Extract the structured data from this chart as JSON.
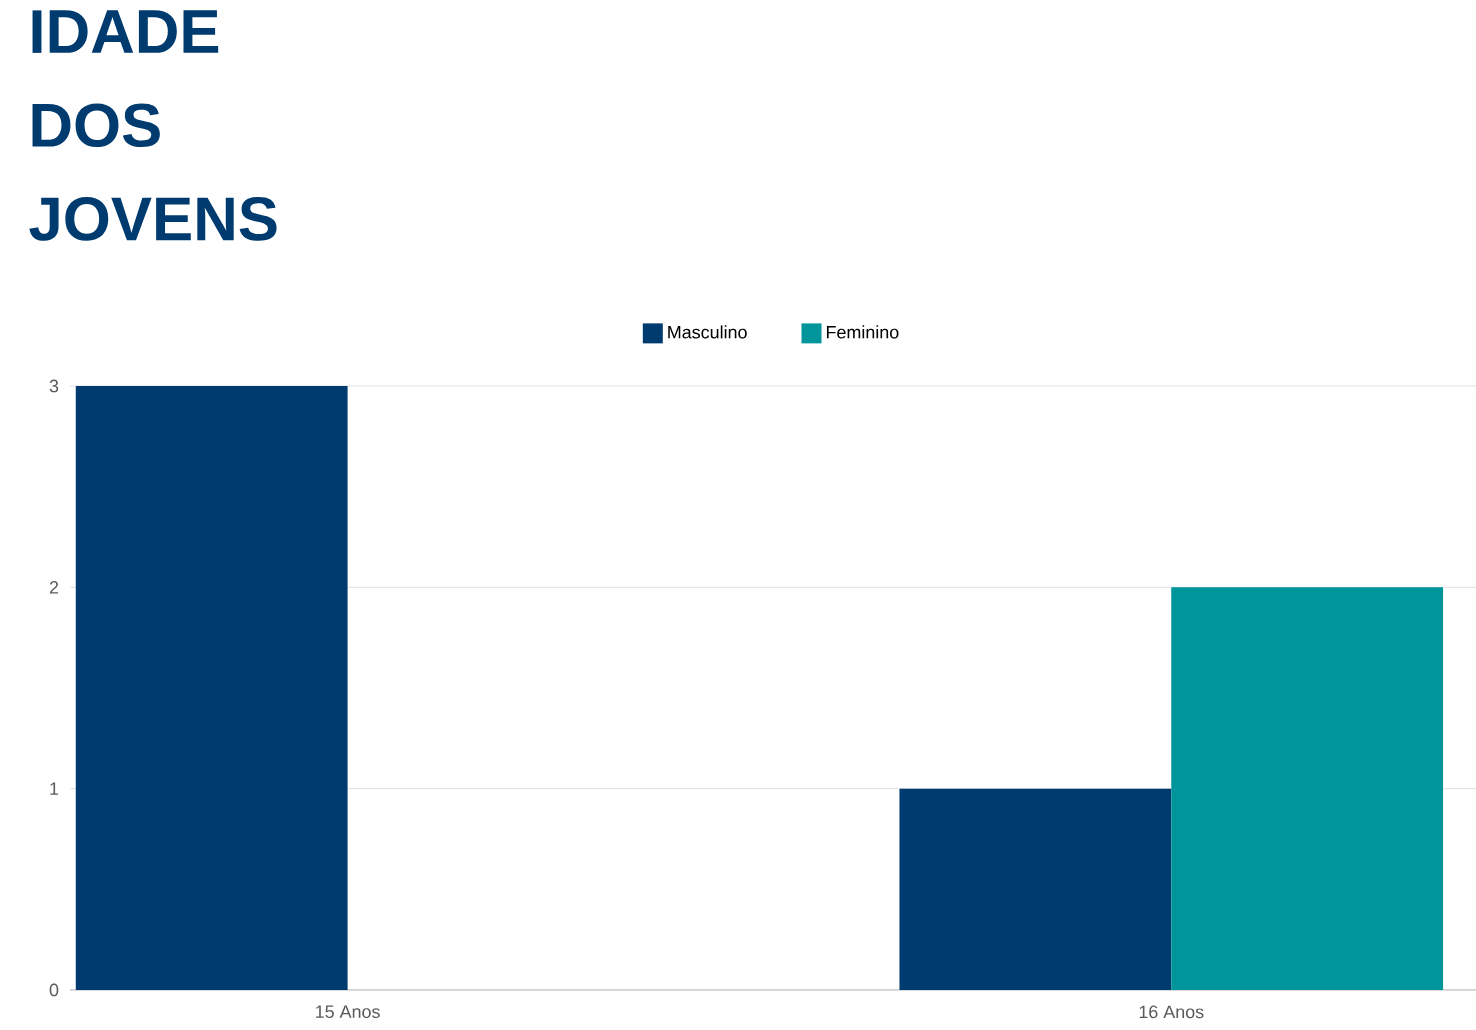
{
  "chart_data": {
    "type": "bar",
    "title": "IDADE DOS JOVENS",
    "categories": [
      "15 Anos",
      "16 Anos"
    ],
    "series": [
      {
        "name": "Masculino",
        "color": "#003b6f",
        "values": [
          3,
          1
        ]
      },
      {
        "name": "Feminino",
        "color": "#00959a",
        "values": [
          0,
          2
        ]
      }
    ],
    "ylim": [
      0,
      3
    ],
    "yticks": [
      0,
      1,
      2,
      3
    ],
    "grid": "y",
    "legend": "top"
  }
}
